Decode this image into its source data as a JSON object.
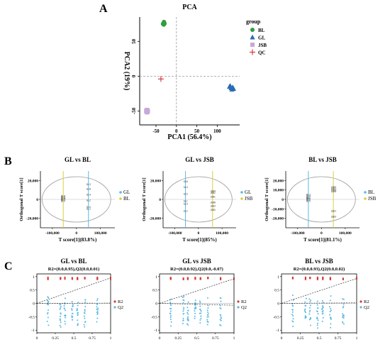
{
  "panels": {
    "A": "A",
    "B": "B",
    "C": "C"
  },
  "colors": {
    "BL": "#2e9e3e",
    "GL": "#2a6cb4",
    "JSB": "#c8a8d8",
    "QC": "#d63b3b",
    "R2": "#d63b3b",
    "Q2": "#5ab9e3",
    "score_yellow": "#d9cf3a",
    "score_blue": "#5ab9e3",
    "ellipse": "#9a9a9a",
    "refline": "#9a9a9a"
  },
  "chart_data": [
    {
      "id": "pca",
      "type": "scatter",
      "title": "PCA",
      "xlabel": "PCA1 (56.4%)",
      "ylabel": "PCA2 (19%)",
      "xlim": [
        -90,
        155
      ],
      "ylim": [
        -70,
        85
      ],
      "xticks": [
        -50,
        0,
        50,
        100
      ],
      "yticks": [
        -50,
        0,
        50
      ],
      "legend_title": "group",
      "legend_position": "right",
      "series": [
        {
          "name": "BL",
          "marker": "circle",
          "color": "#2e9e3e",
          "points": [
            [
              -33,
              75
            ],
            [
              -30,
              77
            ],
            [
              -31,
              74
            ],
            [
              -32,
              76
            ],
            [
              -29,
              75.5
            ],
            [
              -30.5,
              78
            ]
          ]
        },
        {
          "name": "GL",
          "marker": "triangle",
          "color": "#2a6cb4",
          "points": [
            [
              130,
              -15
            ],
            [
              134,
              -17
            ],
            [
              138,
              -16
            ],
            [
              136,
              -19
            ],
            [
              132,
              -14
            ],
            [
              140,
              -18
            ]
          ]
        },
        {
          "name": "JSB",
          "marker": "square",
          "color": "#c8a8d8",
          "points": [
            [
              -74,
              -50
            ],
            [
              -72,
              -52
            ],
            [
              -71,
              -49
            ],
            [
              -73,
              -51
            ],
            [
              -70,
              -50.5
            ],
            [
              -72.5,
              -48.5
            ]
          ]
        },
        {
          "name": "QC",
          "marker": "plus",
          "color": "#d63b3b",
          "points": [
            [
              -38,
              -4
            ]
          ]
        }
      ]
    },
    {
      "id": "opls1",
      "type": "scatter",
      "title": "GL vs BL",
      "xlabel": "T score[1](83.8%)",
      "ylabel": "Orthogonal T score[1]",
      "xlim": [
        -150000,
        160000
      ],
      "ylim": [
        -30000,
        30000
      ],
      "xticks": [
        -100000,
        0,
        100000
      ],
      "xticklabels": [
        "-100,000",
        "0",
        "100,000"
      ],
      "yticks": [
        -20000,
        0,
        20000
      ],
      "yticklabels": [
        "-20,000",
        "0",
        "20,000"
      ],
      "legend": [
        "GL",
        "BL"
      ],
      "series": [
        {
          "name": "GL",
          "color": "#5ab9e3",
          "x": 50000,
          "labels": [
            "GL3",
            "GL6",
            "GL4",
            "GL2",
            "GL5",
            "GL1"
          ],
          "y": [
            15000,
            10000,
            4000,
            -2000,
            -9000,
            -11000
          ]
        },
        {
          "name": "BL",
          "color": "#d9cf3a",
          "x": -55000,
          "labels": [
            "BL6",
            "BL5",
            "BL4",
            "BL3",
            "BL2",
            "BL1"
          ],
          "y": [
            2500,
            1500,
            500,
            -500,
            -1500,
            -2500
          ]
        }
      ]
    },
    {
      "id": "opls2",
      "type": "scatter",
      "title": "GL vs JSB",
      "xlabel": "T score[1](85%)",
      "ylabel": "Orthogonal T score[1]",
      "xlim": [
        -150000,
        160000
      ],
      "ylim": [
        -30000,
        30000
      ],
      "xticks": [
        -100000,
        0,
        100000
      ],
      "xticklabels": [
        "-100,000",
        "0",
        "100,000"
      ],
      "yticks": [
        -20000,
        0,
        20000
      ],
      "yticklabels": [
        "-20,000",
        "0",
        "20,000"
      ],
      "legend": [
        "GL",
        "JSB"
      ],
      "series": [
        {
          "name": "GL",
          "color": "#5ab9e3",
          "x": -55000,
          "labels": [
            "GL6",
            "GL4",
            "GL5",
            "GL1",
            "GL3",
            "GL2"
          ],
          "y": [
            18000,
            12000,
            5000,
            -2500,
            -5500,
            -13000
          ]
        },
        {
          "name": "JSB",
          "color": "#d9cf3a",
          "x": 60000,
          "labels": [
            "JSB4",
            "JSB2",
            "JSB1",
            "JSB6",
            "JSB3",
            "JSB5"
          ],
          "y": [
            8000,
            6000,
            2000,
            -4000,
            -8000,
            -12000
          ]
        }
      ]
    },
    {
      "id": "opls3",
      "type": "scatter",
      "title": "BL vs JSB",
      "xlabel": "T score[1](81.1%)",
      "ylabel": "Orthogonal T score[1]",
      "xlim": [
        -150000,
        160000
      ],
      "ylim": [
        -30000,
        30000
      ],
      "xticks": [
        -100000,
        0,
        100000
      ],
      "xticklabels": [
        "-100,000",
        "0",
        "100,000"
      ],
      "yticks": [
        -20000,
        -10000,
        0,
        10000,
        20000
      ],
      "yticklabels": [
        "-20,000",
        "-10,000",
        "0",
        "10,000",
        "20,000"
      ],
      "legend": [
        "BL",
        "JSB"
      ],
      "series": [
        {
          "name": "BL",
          "color": "#5ab9e3",
          "x": -55000,
          "labels": [
            "BL3",
            "BL4",
            "BL1",
            "BL6",
            "BL2",
            "BL5"
          ],
          "y": [
            4000,
            2500,
            1000,
            0,
            -1000,
            -2500
          ]
        },
        {
          "name": "JSB",
          "color": "#d9cf3a",
          "x": 50000,
          "labels": [
            "JSB5",
            "JSB2",
            "JSB4",
            "JSB6",
            "JSB1",
            "JSB3"
          ],
          "y": [
            12000,
            10500,
            9000,
            7500,
            -13000,
            -19000
          ]
        }
      ]
    },
    {
      "id": "perm1",
      "type": "scatter",
      "title": "GL vs BL",
      "subtitle": "R2=(0.0,0.95),Q2(0.0,0.01)",
      "xlim": [
        0,
        1
      ],
      "ylim": [
        -1.1,
        1.1
      ],
      "xticks": [
        0,
        0.25,
        0.5,
        0.75,
        1
      ],
      "xticklabels": [
        "0",
        "0.25",
        "0.5",
        "0.75",
        "1"
      ],
      "yticks": [
        -1,
        -0.5,
        0,
        0.5,
        1
      ],
      "yticklabels": [
        "-1",
        "-0.5",
        "0",
        "0.5",
        "1"
      ],
      "legend": [
        "R2",
        "Q2"
      ],
      "r2_line": [
        [
          0,
          0.0
        ],
        [
          1,
          0.95
        ]
      ],
      "q2_line": [
        [
          0,
          0.0
        ],
        [
          1,
          0.01
        ]
      ]
    },
    {
      "id": "perm2",
      "type": "scatter",
      "title": "GL vs JSB",
      "subtitle": "R2=(0.0,0.92),Q2(0.0,-0.07)",
      "xlim": [
        0,
        1
      ],
      "ylim": [
        -1.1,
        1.1
      ],
      "xticks": [
        0,
        0.25,
        0.5,
        0.75,
        1
      ],
      "xticklabels": [
        "0",
        "0.25",
        "0.5",
        "0.75",
        "1"
      ],
      "yticks": [
        -1,
        -0.5,
        0,
        0.5,
        1
      ],
      "yticklabels": [
        "-1",
        "-0.5",
        "0",
        "0.5",
        "1"
      ],
      "legend": [
        "R2",
        "Q2"
      ],
      "r2_line": [
        [
          0,
          0.0
        ],
        [
          1,
          0.92
        ]
      ],
      "q2_line": [
        [
          0,
          0.0
        ],
        [
          1,
          -0.07
        ]
      ]
    },
    {
      "id": "perm3",
      "type": "scatter",
      "title": "BL vs JSB",
      "subtitle": "R2=(0.0,0.93),Q2(0.0,0.02)",
      "xlim": [
        0,
        1
      ],
      "ylim": [
        -1.1,
        1.1
      ],
      "xticks": [
        0,
        0.25,
        0.5,
        0.75,
        1
      ],
      "xticklabels": [
        "0",
        "0.25",
        "0.5",
        "0.75",
        "1"
      ],
      "yticks": [
        -1,
        -0.5,
        0,
        0.5,
        1
      ],
      "yticklabels": [
        "-1",
        "-0.5",
        "0",
        "0.5",
        "1"
      ],
      "legend": [
        "R2",
        "Q2"
      ],
      "r2_line": [
        [
          0,
          0.0
        ],
        [
          1,
          0.93
        ]
      ],
      "q2_line": [
        [
          0,
          0.0
        ],
        [
          1,
          0.02
        ]
      ]
    }
  ]
}
